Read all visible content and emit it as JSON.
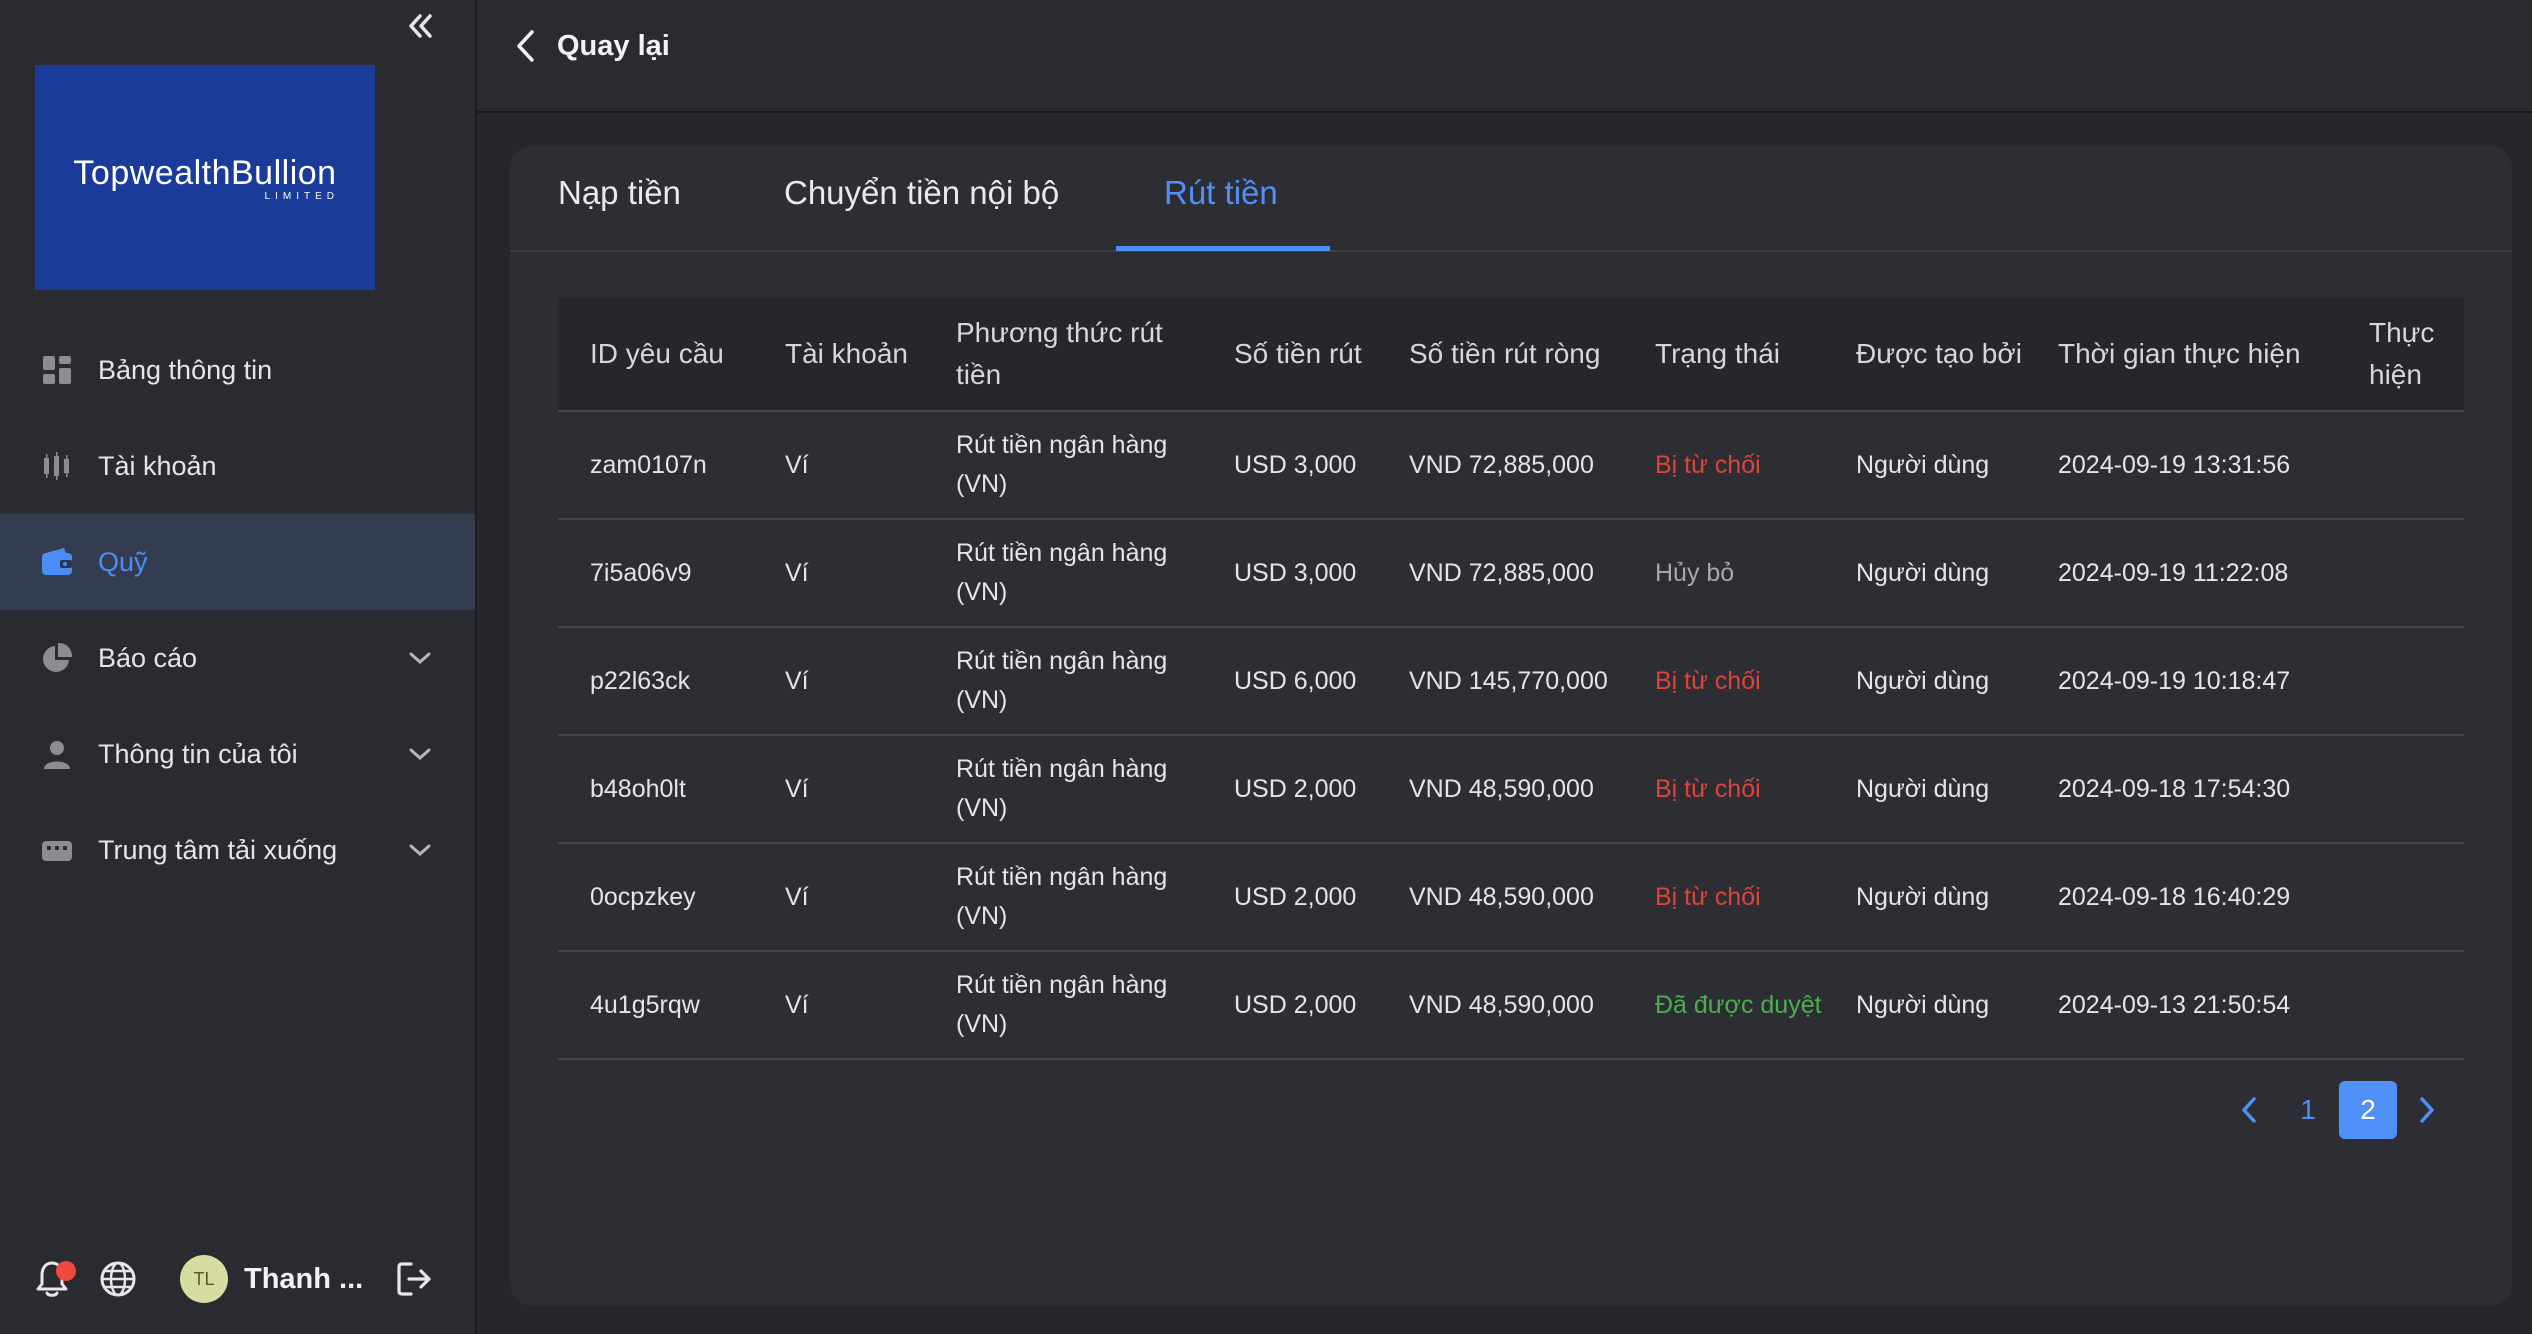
{
  "colors": {
    "accent": "#4f8ff7",
    "rejected": "#e1423a",
    "approved": "#4ab048",
    "logo_bg": "#1a3b9a"
  },
  "sidebar": {
    "logo": {
      "main": "TopwealthBullion",
      "sub": "LIMITED"
    },
    "items": [
      {
        "label": "Bảng thông tin",
        "icon": "dashboard-icon"
      },
      {
        "label": "Tài khoản",
        "icon": "candlestick-icon"
      },
      {
        "label": "Quỹ",
        "icon": "wallet-icon",
        "active": true
      },
      {
        "label": "Báo cáo",
        "icon": "pie-chart-icon",
        "expandable": true
      },
      {
        "label": "Thông tin của tôi",
        "icon": "user-icon",
        "expandable": true
      },
      {
        "label": "Trung tâm tải xuống",
        "icon": "download-center-icon",
        "expandable": true
      }
    ],
    "footer": {
      "avatar_initials": "TL",
      "user_name": "Thanh ..."
    }
  },
  "header": {
    "back_label": "Quay lại"
  },
  "tabs": [
    {
      "label": "Nạp tiền"
    },
    {
      "label": "Chuyển tiền nội bộ"
    },
    {
      "label": "Rút tiền",
      "active": true
    }
  ],
  "table": {
    "columns": [
      "ID yêu cầu",
      "Tài khoản",
      "Phương thức rút tiền",
      "Số tiền rút",
      "Số tiền rút ròng",
      "Trạng thái",
      "Được tạo bởi",
      "Thời gian thực hiện",
      "Thực hiện"
    ],
    "rows": [
      {
        "id": "zam0107n",
        "account": "Ví",
        "method": "Rút tiền ngân hàng (VN)",
        "amount": "USD 3,000",
        "net": "VND 72,885,000",
        "status": "Bị từ chối",
        "status_type": "rejected",
        "created_by": "Người dùng",
        "time": "2024-09-19 13:31:56",
        "action": ""
      },
      {
        "id": "7i5a06v9",
        "account": "Ví",
        "method": "Rút tiền ngân hàng (VN)",
        "amount": "USD 3,000",
        "net": "VND 72,885,000",
        "status": "Hủy bỏ",
        "status_type": "cancel",
        "created_by": "Người dùng",
        "time": "2024-09-19 11:22:08",
        "action": ""
      },
      {
        "id": "p22l63ck",
        "account": "Ví",
        "method": "Rút tiền ngân hàng (VN)",
        "amount": "USD 6,000",
        "net": "VND 145,770,000",
        "status": "Bị từ chối",
        "status_type": "rejected",
        "created_by": "Người dùng",
        "time": "2024-09-19 10:18:47",
        "action": ""
      },
      {
        "id": "b48oh0lt",
        "account": "Ví",
        "method": "Rút tiền ngân hàng (VN)",
        "amount": "USD 2,000",
        "net": "VND 48,590,000",
        "status": "Bị từ chối",
        "status_type": "rejected",
        "created_by": "Người dùng",
        "time": "2024-09-18 17:54:30",
        "action": ""
      },
      {
        "id": "0ocpzkey",
        "account": "Ví",
        "method": "Rút tiền ngân hàng (VN)",
        "amount": "USD 2,000",
        "net": "VND 48,590,000",
        "status": "Bị từ chối",
        "status_type": "rejected",
        "created_by": "Người dùng",
        "time": "2024-09-18 16:40:29",
        "action": ""
      },
      {
        "id": "4u1g5rqw",
        "account": "Ví",
        "method": "Rút tiền ngân hàng (VN)",
        "amount": "USD 2,000",
        "net": "VND 48,590,000",
        "status": "Đã được duyệt",
        "status_type": "approved",
        "created_by": "Người dùng",
        "time": "2024-09-13 21:50:54",
        "action": ""
      }
    ]
  },
  "pagination": {
    "pages": [
      "1",
      "2"
    ],
    "current": "2"
  }
}
